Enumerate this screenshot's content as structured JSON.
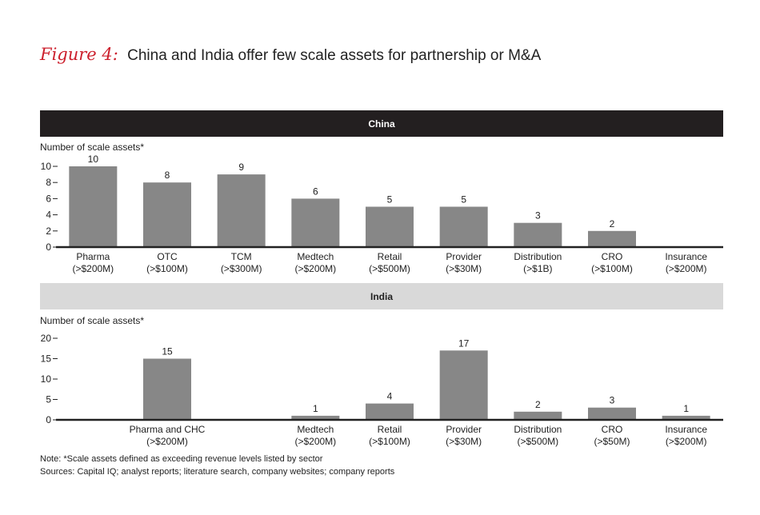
{
  "figure": {
    "label": "Figure 4:",
    "title": "China and India offer few scale assets for partnership or M&A"
  },
  "colors": {
    "bar": "#878787",
    "china_header_bg": "#231f20",
    "india_header_bg": "#d9d9d9",
    "title_accent": "#cc1f2c"
  },
  "chart_data": [
    {
      "type": "bar",
      "title": "China",
      "ylabel": "Number of scale assets*",
      "ylim": [
        0,
        10
      ],
      "yticks": [
        "0",
        "2",
        "4",
        "6",
        "8",
        "10"
      ],
      "categories": [
        [
          "Pharma",
          "(>$200M)"
        ],
        [
          "OTC",
          "(>$100M)"
        ],
        [
          "TCM",
          "(>$300M)"
        ],
        [
          "Medtech",
          "(>$200M)"
        ],
        [
          "Retail",
          "(>$500M)"
        ],
        [
          "Provider",
          "(>$30M)"
        ],
        [
          "Distribution",
          "(>$1B)"
        ],
        [
          "CRO",
          "(>$100M)"
        ],
        [
          "Insurance",
          "(>$200M)"
        ]
      ],
      "values": [
        10,
        8,
        9,
        6,
        5,
        5,
        3,
        2,
        0
      ],
      "data_labels": [
        "10",
        "8",
        "9",
        "6",
        "5",
        "5",
        "3",
        "2",
        ""
      ],
      "grid": false
    },
    {
      "type": "bar",
      "title": "India",
      "ylabel": "Number of scale assets*",
      "ylim": [
        0,
        20
      ],
      "yticks": [
        "0",
        "5",
        "10",
        "15",
        "20"
      ],
      "categories": [
        [
          "",
          ""
        ],
        [
          "Pharma and CHC",
          "(>$200M)"
        ],
        [
          "",
          ""
        ],
        [
          "Medtech",
          "(>$200M)"
        ],
        [
          "Retail",
          "(>$100M)"
        ],
        [
          "Provider",
          "(>$30M)"
        ],
        [
          "Distribution",
          "(>$500M)"
        ],
        [
          "CRO",
          "(>$50M)"
        ],
        [
          "Insurance",
          "(>$200M)"
        ]
      ],
      "values": [
        0,
        15,
        0,
        1,
        4,
        17,
        2,
        3,
        1
      ],
      "data_labels": [
        "",
        "15",
        "",
        "1",
        "4",
        "17",
        "2",
        "3",
        "1"
      ],
      "grid": false
    }
  ],
  "notes": {
    "note": "Note: *Scale assets defined as exceeding revenue levels listed by sector",
    "sources": "Sources: Capital IQ; analyst reports; literature search, company websites; company reports"
  }
}
